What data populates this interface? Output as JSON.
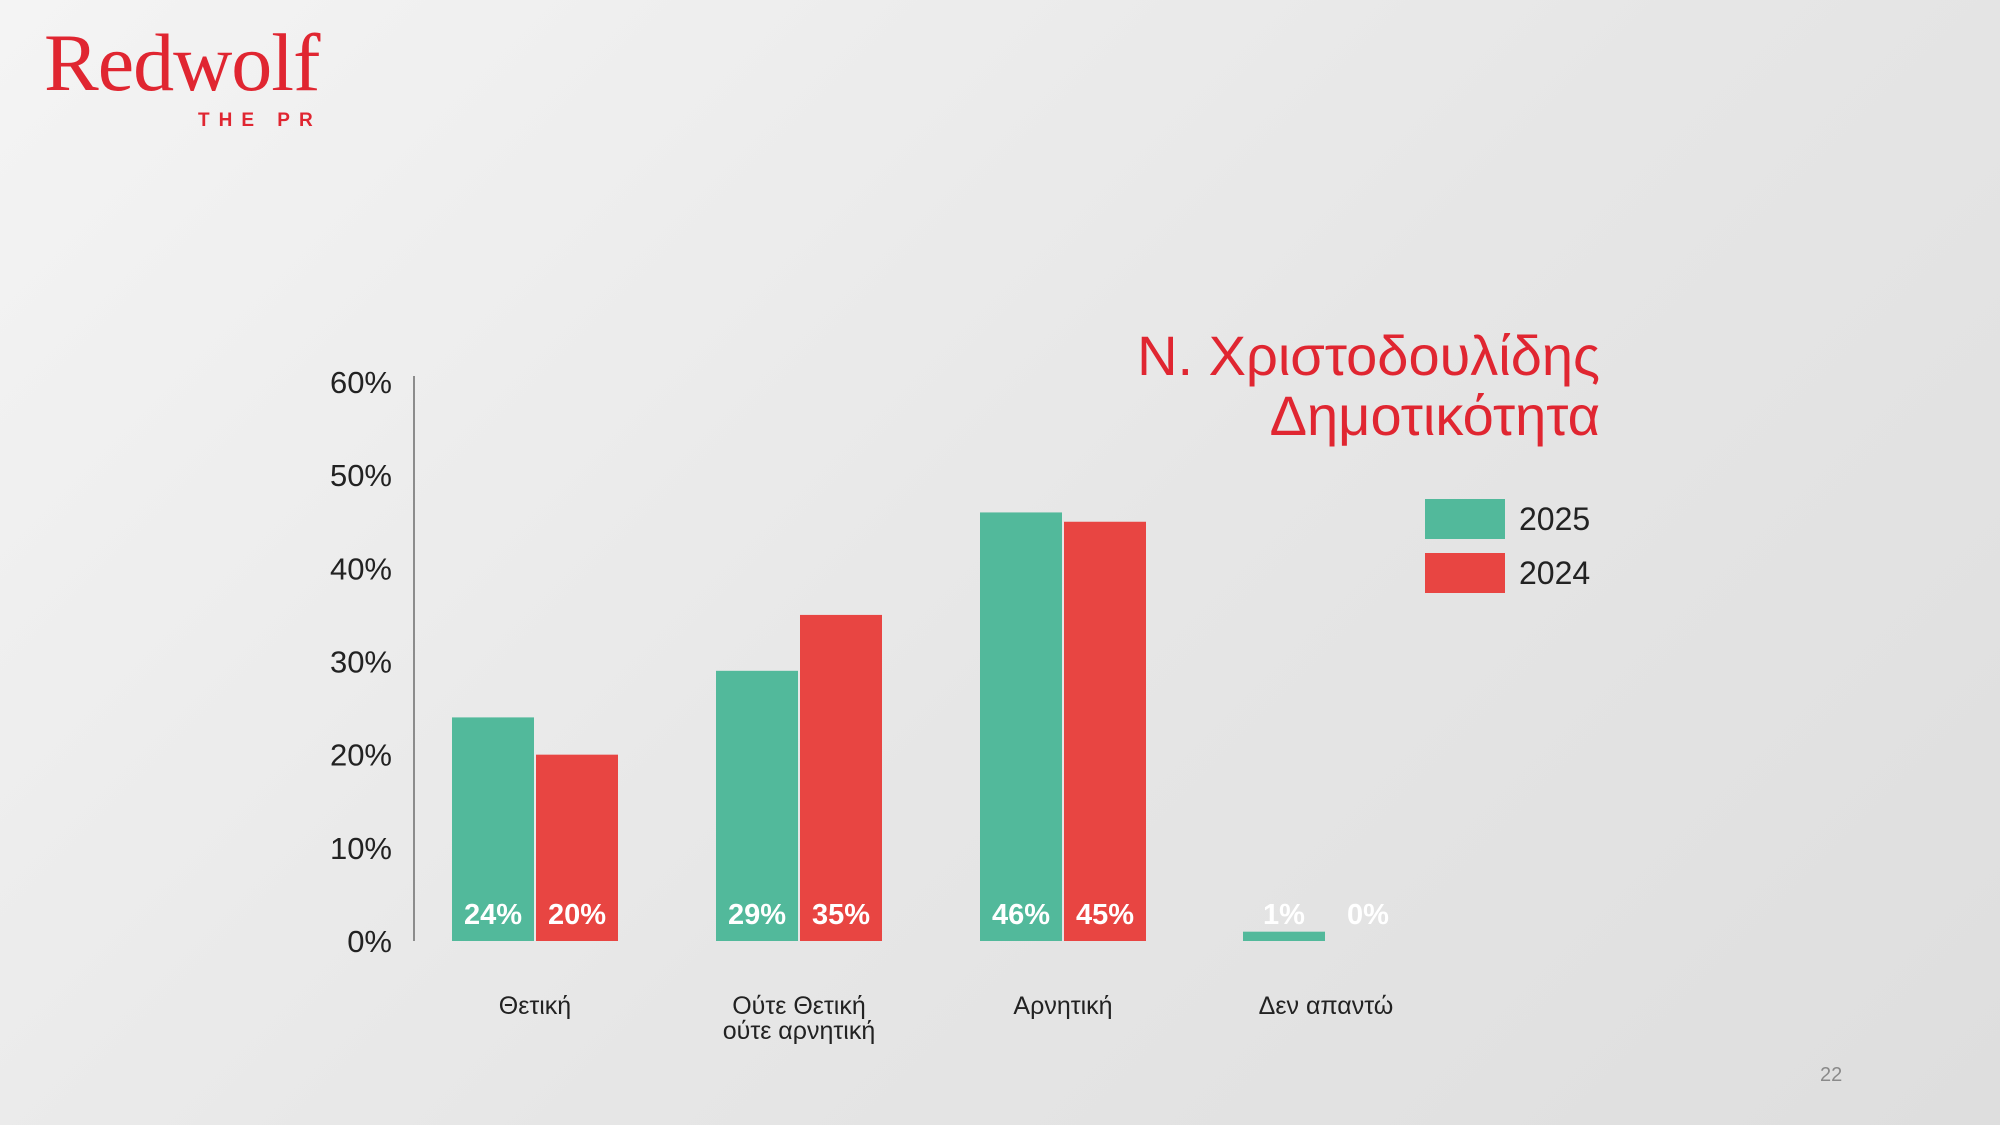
{
  "brand": {
    "name": "Redwolf",
    "tagline": "THE PR"
  },
  "page_number": "22",
  "colors": {
    "series_2025": "#52b99b",
    "series_2024": "#e84542",
    "brand_red": "#e02631",
    "axis": "#8c8c8c",
    "text": "#222222",
    "bar_label": "#ffffff"
  },
  "chart_data": {
    "type": "bar",
    "title": [
      "Ν. Χριστοδουλίδης",
      "Δημοτικότητα"
    ],
    "categories": [
      [
        "Θετική"
      ],
      [
        "Ούτε Θετική",
        "ούτε αρνητική"
      ],
      [
        "Αρνητική"
      ],
      [
        "Δεν απαντώ"
      ]
    ],
    "series": [
      {
        "name": "2025",
        "values": [
          24,
          29,
          46,
          1
        ],
        "labels": [
          "24%",
          "29%",
          "46%",
          "1%"
        ]
      },
      {
        "name": "2024",
        "values": [
          20,
          35,
          45,
          0
        ],
        "labels": [
          "20%",
          "35%",
          "45%",
          "0%"
        ]
      }
    ],
    "ylim": [
      0,
      60
    ],
    "yticks": [
      "0%",
      "10%",
      "20%",
      "30%",
      "40%",
      "50%",
      "60%"
    ],
    "grid": false,
    "legend_position": "top-right"
  }
}
